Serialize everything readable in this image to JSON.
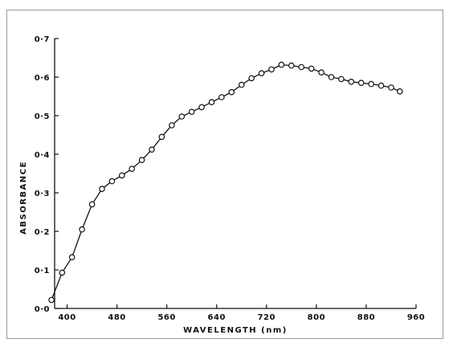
{
  "chart_data": {
    "type": "line",
    "title": "",
    "xlabel": "WAVELENGTH (nm)",
    "ylabel": "ABSORBANCE",
    "xlim": [
      380,
      960
    ],
    "ylim": [
      0.0,
      0.7
    ],
    "xticks": [
      400,
      480,
      560,
      640,
      720,
      800,
      880,
      960
    ],
    "xtick_labels": [
      "400",
      "480",
      "560",
      "640",
      "720",
      "800",
      "880",
      "960"
    ],
    "yticks": [
      0.0,
      0.1,
      0.2,
      0.3,
      0.4,
      0.5,
      0.6,
      0.7
    ],
    "ytick_labels": [
      "0·0",
      "0·1",
      "0·2",
      "0·3",
      "0·4",
      "0·5",
      "0·6",
      "0·7"
    ],
    "grid": false,
    "legend": "none",
    "marker": "open-circle",
    "series": [
      {
        "x": [
          375,
          392,
          408,
          424,
          440,
          456,
          472,
          488,
          504,
          520,
          536,
          552,
          568,
          584,
          600,
          616,
          632,
          648,
          664,
          680,
          696,
          712,
          728,
          744,
          760,
          776,
          792,
          808,
          824,
          840,
          856,
          872,
          888,
          904,
          920,
          934
        ],
        "y": [
          0.022,
          0.093,
          0.133,
          0.205,
          0.27,
          0.31,
          0.33,
          0.345,
          0.362,
          0.385,
          0.412,
          0.445,
          0.475,
          0.498,
          0.51,
          0.522,
          0.535,
          0.548,
          0.561,
          0.58,
          0.597,
          0.61,
          0.62,
          0.632,
          0.63,
          0.626,
          0.622,
          0.612,
          0.6,
          0.595,
          0.588,
          0.585,
          0.582,
          0.578,
          0.573,
          0.563
        ]
      }
    ]
  }
}
